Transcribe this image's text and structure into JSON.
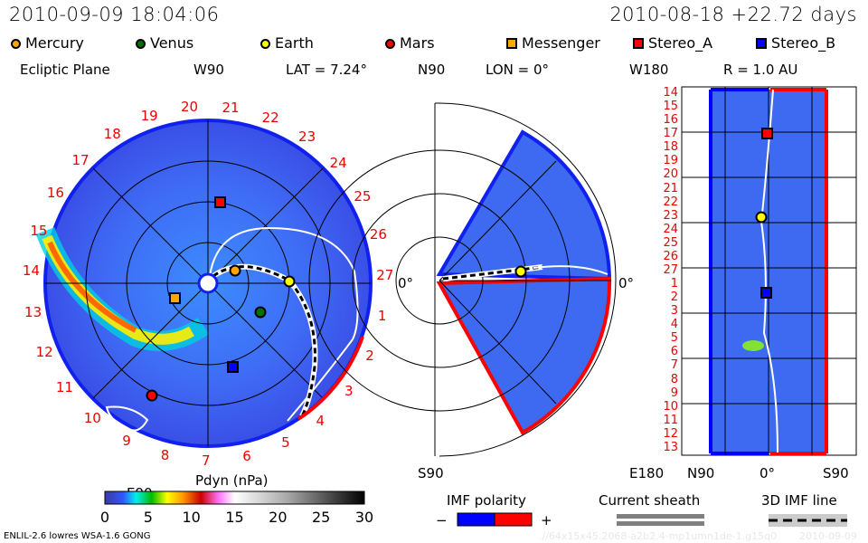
{
  "header": {
    "timestamp": "2010-09-09 18:04:06",
    "run_info": "2010-08-18 +22.72 days"
  },
  "legend": {
    "planets": [
      {
        "label": "Mercury",
        "color": "#ffa500",
        "shape": "circle"
      },
      {
        "label": "Venus",
        "color": "#007000",
        "shape": "circle"
      },
      {
        "label": "Earth",
        "color": "#ffff00",
        "shape": "circle"
      },
      {
        "label": "Mars",
        "color": "#ff0000",
        "shape": "circle"
      }
    ],
    "spacecraft": [
      {
        "label": "Messenger",
        "color": "#ffa500",
        "shape": "square"
      },
      {
        "label": "Stereo_A",
        "color": "#ff0000",
        "shape": "square"
      },
      {
        "label": "Stereo_B",
        "color": "#0000ff",
        "shape": "square"
      }
    ]
  },
  "ecliptic_panel": {
    "title": "Ecliptic Plane",
    "top_label": "W90",
    "bottom_label": "E90",
    "right_label": "0°",
    "lat_label": "LAT = 7.24°",
    "carrington_days": [
      "1",
      "2",
      "3",
      "4",
      "5",
      "6",
      "7",
      "8",
      "9",
      "10",
      "11",
      "12",
      "13",
      "14",
      "15",
      "16",
      "17",
      "18",
      "19",
      "20",
      "21",
      "22",
      "23",
      "24",
      "25",
      "26",
      "27"
    ]
  },
  "meridional_panel": {
    "top_label": "N90",
    "bottom_label": "S90",
    "right_label": "0°",
    "lon_label": "LON = 0°"
  },
  "radial_panel": {
    "top_label": "W180",
    "bottom_label": "E180",
    "r_label": "R = 1.0 AU",
    "x_labels": [
      "N90",
      "0°",
      "S90"
    ],
    "day_ticks": [
      "14",
      "15",
      "16",
      "17",
      "18",
      "19",
      "20",
      "21",
      "22",
      "23",
      "24",
      "25",
      "26",
      "27",
      "1",
      "2",
      "3",
      "4",
      "5",
      "6",
      "7",
      "8",
      "9",
      "10",
      "11",
      "12",
      "13"
    ]
  },
  "colorbar": {
    "title": "Pdyn (nPa)",
    "ticks": [
      "0",
      "5",
      "10",
      "15",
      "20",
      "25",
      "30"
    ],
    "range": [
      0,
      30
    ]
  },
  "imf_polarity": {
    "title": "IMF polarity",
    "minus": "−",
    "plus": "+",
    "neg_color": "#0000ff",
    "pos_color": "#ff0000"
  },
  "current_sheath": {
    "title": "Current sheath"
  },
  "imf_line": {
    "title": "3D IMF line"
  },
  "footer": {
    "model_info": "ENLIL-2.6 lowres WSA-1.6 GONG",
    "run_path": ".//64x15x45.2068-a2b2.4-mp1umn1de-1.g15q0",
    "run_date": "2010-09-09"
  }
}
